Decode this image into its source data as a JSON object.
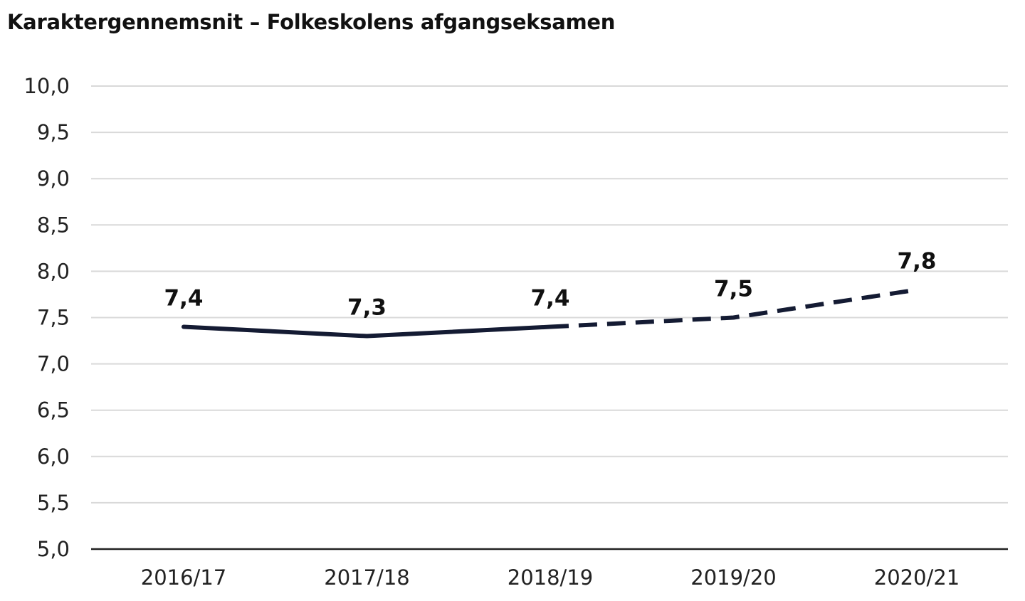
{
  "chart_data": {
    "type": "line",
    "title": "Karaktergennemsnit – Folkeskolens afgangseksamen",
    "categories": [
      "2016/17",
      "2017/18",
      "2018/19",
      "2019/20",
      "2020/21"
    ],
    "series": [
      {
        "values": [
          7.4,
          7.3,
          7.4,
          7.5,
          7.8
        ],
        "data_labels": [
          "7,4",
          "7,3",
          "7,4",
          "7,5",
          "7,8"
        ],
        "solid_segment_categories": [
          "2016/17",
          "2017/18",
          "2018/19"
        ],
        "dashed_segment_categories": [
          "2018/19",
          "2019/20",
          "2020/21"
        ],
        "color": "#141b33"
      }
    ],
    "ylim": [
      5.0,
      10.0
    ],
    "ytick_labels": [
      "5,0",
      "5,5",
      "6,0",
      "6,5",
      "7,0",
      "7,5",
      "8,0",
      "8,5",
      "9,0",
      "9,5",
      "10,0"
    ],
    "xlabel": "",
    "ylabel": "",
    "grid": true,
    "legend": "none",
    "colors": {
      "line": "#141b33",
      "grid": "#d9d9d9",
      "axis": "#222222"
    }
  }
}
